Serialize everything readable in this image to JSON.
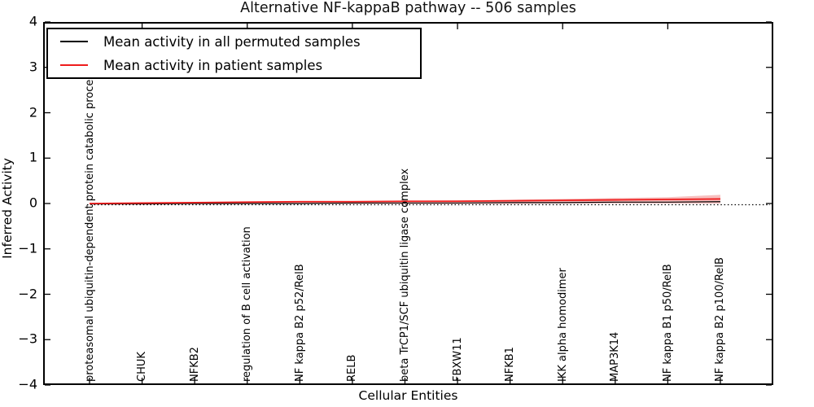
{
  "title": "Alternative NF-kappaB pathway -- 506 samples",
  "axes": {
    "ylabel": "Inferred Activity",
    "xlabel": "Cellular Entities",
    "yticks": [
      "4",
      "3",
      "2",
      "1",
      "0",
      "−1",
      "−2",
      "−3",
      "−4"
    ]
  },
  "legend": {
    "items": [
      {
        "label": "Mean activity in all permuted samples",
        "color": "#000000"
      },
      {
        "label": "Mean activity in patient samples",
        "color": "#ef1c1c"
      }
    ]
  },
  "colors": {
    "patient_line": "#ef1c1c",
    "permuted_line": "#000000",
    "confidence_band": "#e53939",
    "zero_line": "#000000",
    "frame": "#000000"
  },
  "chart_data": {
    "type": "line",
    "title": "Alternative NF-kappaB pathway -- 506 samples",
    "xlabel": "Cellular Entities",
    "ylabel": "Inferred Activity",
    "ylim": [
      -4,
      4
    ],
    "grid": false,
    "legend_position": "upper left",
    "zero_reference_line": 0,
    "categories": [
      "proteasomal ubiquitin-dependent protein catabolic process",
      "CHUK",
      "NFKB2",
      "regulation of B cell activation",
      "NF kappa B2 p52/RelB",
      "RELB",
      "beta TrCP1/SCF ubiquitin ligase complex",
      "FBXW11",
      "NFKB1",
      "IKK alpha homodimer",
      "MAP3K14",
      "NF kappa B1 p50/RelB",
      "NF kappa B2 p100/RelB"
    ],
    "series": [
      {
        "name": "Mean activity in all permuted samples",
        "color": "#000000",
        "values": [
          -0.01,
          -0.01,
          0.0,
          0.0,
          0.0,
          0.01,
          0.01,
          0.01,
          0.02,
          0.02,
          0.03,
          0.03,
          0.04
        ]
      },
      {
        "name": "Mean activity in patient samples",
        "color": "#ef1c1c",
        "values": [
          0.0,
          0.01,
          0.02,
          0.03,
          0.04,
          0.04,
          0.05,
          0.05,
          0.06,
          0.07,
          0.08,
          0.09,
          0.1
        ],
        "band_upper": [
          0.0,
          0.01,
          0.02,
          0.03,
          0.04,
          0.05,
          0.06,
          0.07,
          0.08,
          0.1,
          0.12,
          0.14,
          0.19
        ],
        "band_lower": [
          -0.02,
          -0.01,
          -0.01,
          -0.01,
          -0.01,
          -0.01,
          -0.01,
          -0.01,
          -0.01,
          0.0,
          0.0,
          0.0,
          0.0
        ]
      }
    ]
  }
}
